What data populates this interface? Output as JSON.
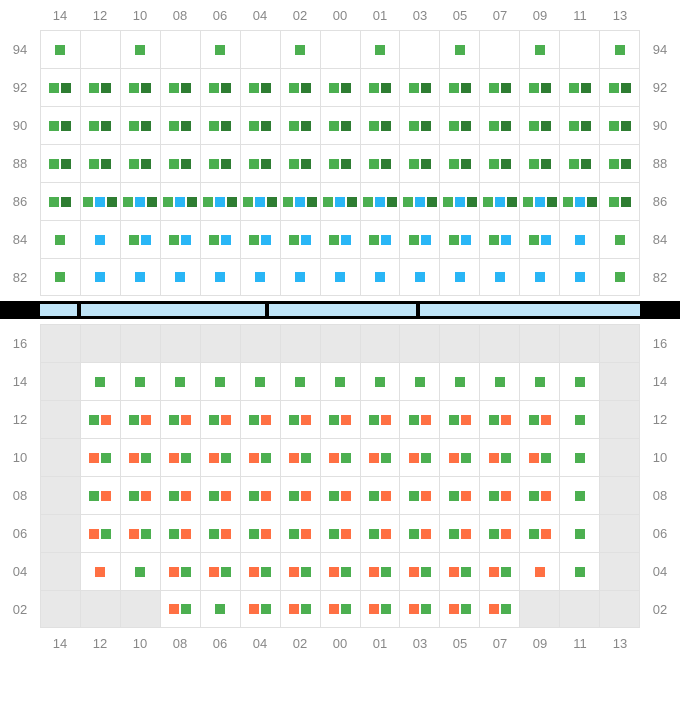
{
  "colors": {
    "green": "#4caf50",
    "darkgreen": "#2e7d32",
    "blue": "#29b6f6",
    "orange": "#ff7043",
    "grey_bg": "#e8e8e8",
    "grid_line": "#e0e0e0",
    "label": "#888888",
    "band_bg": "#000000",
    "band_seg": "#bfe4f7"
  },
  "columns": [
    "14",
    "12",
    "10",
    "08",
    "06",
    "04",
    "02",
    "00",
    "01",
    "03",
    "05",
    "07",
    "09",
    "11",
    "13"
  ],
  "topSection": {
    "rowLabels": [
      "94",
      "92",
      "90",
      "88",
      "86",
      "84",
      "82"
    ],
    "rows": [
      [
        [
          "g"
        ],
        [],
        [
          "g"
        ],
        [],
        [
          "g"
        ],
        [],
        [
          "g"
        ],
        [],
        [
          "g"
        ],
        [],
        [
          "g"
        ],
        [],
        [
          "g"
        ],
        [],
        [
          "g"
        ]
      ],
      [
        [
          "g",
          "d"
        ],
        [
          "g",
          "d"
        ],
        [
          "g",
          "d"
        ],
        [
          "g",
          "d"
        ],
        [
          "g",
          "d"
        ],
        [
          "g",
          "d"
        ],
        [
          "g",
          "d"
        ],
        [
          "g",
          "d"
        ],
        [
          "g",
          "d"
        ],
        [
          "g",
          "d"
        ],
        [
          "g",
          "d"
        ],
        [
          "g",
          "d"
        ],
        [
          "g",
          "d"
        ],
        [
          "g",
          "d"
        ],
        [
          "g",
          "d"
        ]
      ],
      [
        [
          "g",
          "d"
        ],
        [
          "g",
          "d"
        ],
        [
          "g",
          "d"
        ],
        [
          "g",
          "d"
        ],
        [
          "g",
          "d"
        ],
        [
          "g",
          "d"
        ],
        [
          "g",
          "d"
        ],
        [
          "g",
          "d"
        ],
        [
          "g",
          "d"
        ],
        [
          "g",
          "d"
        ],
        [
          "g",
          "d"
        ],
        [
          "g",
          "d"
        ],
        [
          "g",
          "d"
        ],
        [
          "g",
          "d"
        ],
        [
          "g",
          "d"
        ]
      ],
      [
        [
          "g",
          "d"
        ],
        [
          "g",
          "d"
        ],
        [
          "g",
          "d"
        ],
        [
          "g",
          "d"
        ],
        [
          "g",
          "d"
        ],
        [
          "g",
          "d"
        ],
        [
          "g",
          "d"
        ],
        [
          "g",
          "d"
        ],
        [
          "g",
          "d"
        ],
        [
          "g",
          "d"
        ],
        [
          "g",
          "d"
        ],
        [
          "g",
          "d"
        ],
        [
          "g",
          "d"
        ],
        [
          "g",
          "d"
        ],
        [
          "g",
          "d"
        ]
      ],
      [
        [
          "g",
          "d"
        ],
        [
          "g",
          "b",
          "d"
        ],
        [
          "g",
          "b",
          "d"
        ],
        [
          "g",
          "b",
          "d"
        ],
        [
          "g",
          "b",
          "d"
        ],
        [
          "g",
          "b",
          "d"
        ],
        [
          "g",
          "b",
          "d"
        ],
        [
          "g",
          "b",
          "d"
        ],
        [
          "g",
          "b",
          "d"
        ],
        [
          "g",
          "b",
          "d"
        ],
        [
          "g",
          "b",
          "d"
        ],
        [
          "g",
          "b",
          "d"
        ],
        [
          "g",
          "b",
          "d"
        ],
        [
          "g",
          "b",
          "d"
        ],
        [
          "g",
          "d"
        ]
      ],
      [
        [
          "g"
        ],
        [
          "b"
        ],
        [
          "g",
          "b"
        ],
        [
          "g",
          "b"
        ],
        [
          "g",
          "b"
        ],
        [
          "g",
          "b"
        ],
        [
          "g",
          "b"
        ],
        [
          "g",
          "b"
        ],
        [
          "g",
          "b"
        ],
        [
          "g",
          "b"
        ],
        [
          "g",
          "b"
        ],
        [
          "g",
          "b"
        ],
        [
          "g",
          "b"
        ],
        [
          "b"
        ],
        [
          "g"
        ]
      ],
      [
        [
          "g"
        ],
        [
          "b"
        ],
        [
          "b"
        ],
        [
          "b"
        ],
        [
          "b"
        ],
        [
          "b"
        ],
        [
          "b"
        ],
        [
          "b"
        ],
        [
          "b"
        ],
        [
          "b"
        ],
        [
          "b"
        ],
        [
          "b"
        ],
        [
          "b"
        ],
        [
          "b"
        ],
        [
          "g"
        ]
      ]
    ]
  },
  "dividerSegments": [
    1,
    5,
    4,
    6
  ],
  "bottomSection": {
    "rowLabels": [
      "16",
      "14",
      "12",
      "10",
      "08",
      "06",
      "04",
      "02"
    ],
    "rows": [
      {
        "grey": [
          0,
          1,
          2,
          3,
          4,
          5,
          6,
          7,
          8,
          9,
          10,
          11,
          12,
          13,
          14
        ],
        "cells": [
          [],
          [],
          [],
          [],
          [],
          [],
          [],
          [],
          [],
          [],
          [],
          [],
          [],
          [],
          []
        ]
      },
      {
        "grey": [
          0,
          14
        ],
        "cells": [
          [],
          [
            "g"
          ],
          [
            "g"
          ],
          [
            "g"
          ],
          [
            "g"
          ],
          [
            "g"
          ],
          [
            "g"
          ],
          [
            "g"
          ],
          [
            "g"
          ],
          [
            "g"
          ],
          [
            "g"
          ],
          [
            "g"
          ],
          [
            "g"
          ],
          [
            "g"
          ],
          []
        ]
      },
      {
        "grey": [
          0,
          14
        ],
        "cells": [
          [],
          [
            "g",
            "o"
          ],
          [
            "g",
            "o"
          ],
          [
            "g",
            "o"
          ],
          [
            "g",
            "o"
          ],
          [
            "g",
            "o"
          ],
          [
            "g",
            "o"
          ],
          [
            "g",
            "o"
          ],
          [
            "g",
            "o"
          ],
          [
            "g",
            "o"
          ],
          [
            "g",
            "o"
          ],
          [
            "g",
            "o"
          ],
          [
            "g",
            "o"
          ],
          [
            "g"
          ],
          []
        ]
      },
      {
        "grey": [
          0,
          14
        ],
        "cells": [
          [],
          [
            "o",
            "g"
          ],
          [
            "o",
            "g"
          ],
          [
            "o",
            "g"
          ],
          [
            "o",
            "g"
          ],
          [
            "o",
            "g"
          ],
          [
            "o",
            "g"
          ],
          [
            "o",
            "g"
          ],
          [
            "o",
            "g"
          ],
          [
            "o",
            "g"
          ],
          [
            "o",
            "g"
          ],
          [
            "o",
            "g"
          ],
          [
            "o",
            "g"
          ],
          [
            "g"
          ],
          []
        ]
      },
      {
        "grey": [
          0,
          14
        ],
        "cells": [
          [],
          [
            "g",
            "o"
          ],
          [
            "g",
            "o"
          ],
          [
            "g",
            "o"
          ],
          [
            "g",
            "o"
          ],
          [
            "g",
            "o"
          ],
          [
            "g",
            "o"
          ],
          [
            "g",
            "o"
          ],
          [
            "g",
            "o"
          ],
          [
            "g",
            "o"
          ],
          [
            "g",
            "o"
          ],
          [
            "g",
            "o"
          ],
          [
            "g",
            "o"
          ],
          [
            "g"
          ],
          []
        ]
      },
      {
        "grey": [
          0,
          14
        ],
        "cells": [
          [],
          [
            "o",
            "g"
          ],
          [
            "o",
            "g"
          ],
          [
            "g",
            "o"
          ],
          [
            "g",
            "o"
          ],
          [
            "g",
            "o"
          ],
          [
            "g",
            "o"
          ],
          [
            "g",
            "o"
          ],
          [
            "g",
            "o"
          ],
          [
            "g",
            "o"
          ],
          [
            "g",
            "o"
          ],
          [
            "g",
            "o"
          ],
          [
            "g",
            "o"
          ],
          [
            "g"
          ],
          []
        ]
      },
      {
        "grey": [
          0,
          14
        ],
        "cells": [
          [],
          [
            "o"
          ],
          [
            "g"
          ],
          [
            "o",
            "g"
          ],
          [
            "o",
            "g"
          ],
          [
            "o",
            "g"
          ],
          [
            "o",
            "g"
          ],
          [
            "o",
            "g"
          ],
          [
            "o",
            "g"
          ],
          [
            "o",
            "g"
          ],
          [
            "o",
            "g"
          ],
          [
            "o",
            "g"
          ],
          [
            "o"
          ],
          [
            "g"
          ],
          []
        ]
      },
      {
        "grey": [
          0,
          1,
          2,
          12,
          13,
          14
        ],
        "cells": [
          [],
          [],
          [],
          [
            "o",
            "g"
          ],
          [
            "g"
          ],
          [
            "o",
            "g"
          ],
          [
            "o",
            "g"
          ],
          [
            "o",
            "g"
          ],
          [
            "o",
            "g"
          ],
          [
            "o",
            "g"
          ],
          [
            "o",
            "g"
          ],
          [
            "o",
            "g"
          ],
          [],
          [],
          []
        ]
      }
    ]
  }
}
